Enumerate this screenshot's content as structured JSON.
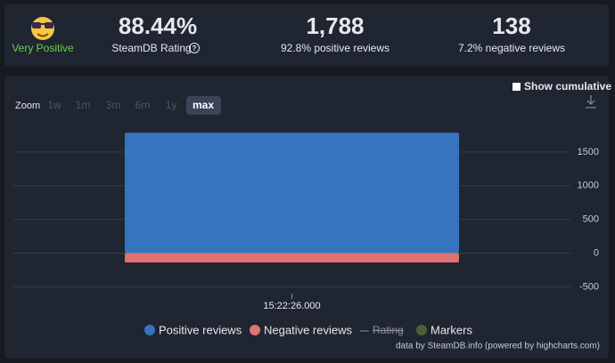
{
  "summary": {
    "rating_label": "Very Positive",
    "rating": "88.44%",
    "rating_caption": "SteamDB Rating",
    "positive": "1,788",
    "positive_caption": "92.8% positive reviews",
    "negative": "138",
    "negative_caption": "7.2% negative reviews"
  },
  "controls": {
    "zoom_label": "Zoom",
    "zoom_options": [
      "1w",
      "1m",
      "3m",
      "6m",
      "1y",
      "max"
    ],
    "active_zoom_index": 5,
    "cumulative_label": "Show cumulative"
  },
  "chart_data": {
    "type": "bar",
    "categories": [
      "15:22:26.000"
    ],
    "series": [
      {
        "name": "Positive reviews",
        "color": "#3674bd",
        "values": [
          1788
        ]
      },
      {
        "name": "Negative reviews",
        "color": "#e0736f",
        "values": [
          -138
        ]
      }
    ],
    "legend_extra": [
      {
        "name": "Rating",
        "color": "#8a8f98",
        "hidden": true
      },
      {
        "name": "Markers",
        "color": "#4c5f36"
      }
    ],
    "ylim": [
      -600,
      2000
    ],
    "yticks": [
      1500,
      1000,
      500,
      0,
      -500
    ],
    "grid": true,
    "credit": "data by SteamDB.info (powered by highcharts.com)"
  }
}
